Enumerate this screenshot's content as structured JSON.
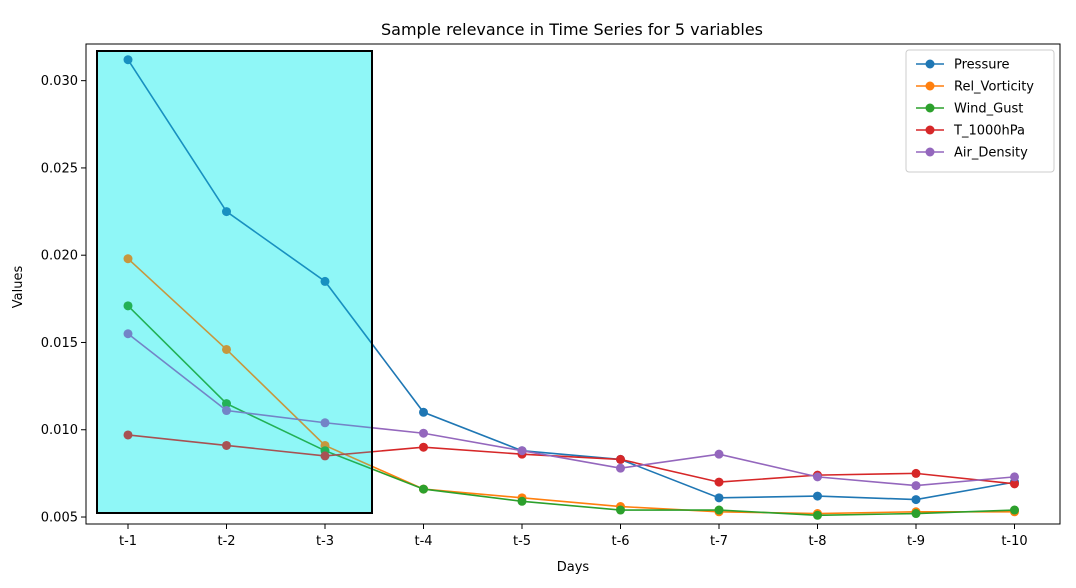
{
  "chart_data": {
    "type": "line",
    "title": "Sample relevance in Time Series for 5 variables",
    "xlabel": "Days",
    "ylabel": "Values",
    "categories": [
      "t-1",
      "t-2",
      "t-3",
      "t-4",
      "t-5",
      "t-6",
      "t-7",
      "t-8",
      "t-9",
      "t-10"
    ],
    "ylim": [
      0.0046,
      0.0321
    ],
    "yticks": [
      0.005,
      0.01,
      0.015,
      0.02,
      0.025,
      0.03
    ],
    "ytick_labels": [
      "0.005",
      "0.010",
      "0.015",
      "0.020",
      "0.025",
      "0.030"
    ],
    "grid": false,
    "legend_position": "top-right",
    "series": [
      {
        "name": "Pressure",
        "color": "#1f77b4",
        "values": [
          0.0312,
          0.0225,
          0.0185,
          0.011,
          0.0088,
          0.0083,
          0.0061,
          0.0062,
          0.006,
          0.007
        ]
      },
      {
        "name": "Rel_Vorticity",
        "color": "#ff7f0e",
        "values": [
          0.0198,
          0.0146,
          0.0091,
          0.0066,
          0.0061,
          0.0056,
          0.0053,
          0.0052,
          0.0053,
          0.0053
        ]
      },
      {
        "name": "Wind_Gust",
        "color": "#2ca02c",
        "values": [
          0.0171,
          0.0115,
          0.0088,
          0.0066,
          0.0059,
          0.0054,
          0.0054,
          0.0051,
          0.0052,
          0.0054
        ]
      },
      {
        "name": "T_1000hPa",
        "color": "#d62728",
        "values": [
          0.0097,
          0.0091,
          0.0085,
          0.009,
          0.0086,
          0.0083,
          0.007,
          0.0074,
          0.0075,
          0.0069
        ]
      },
      {
        "name": "Air_Density",
        "color": "#9467bd",
        "values": [
          0.0155,
          0.0111,
          0.0104,
          0.0098,
          0.0088,
          0.0078,
          0.0086,
          0.0073,
          0.0068,
          0.0073
        ]
      }
    ],
    "highlight": {
      "x_from": "t-1",
      "x_to": "t-3",
      "fill": "#00eeee",
      "opacity": 0.28,
      "edge_color": "#000000"
    }
  }
}
